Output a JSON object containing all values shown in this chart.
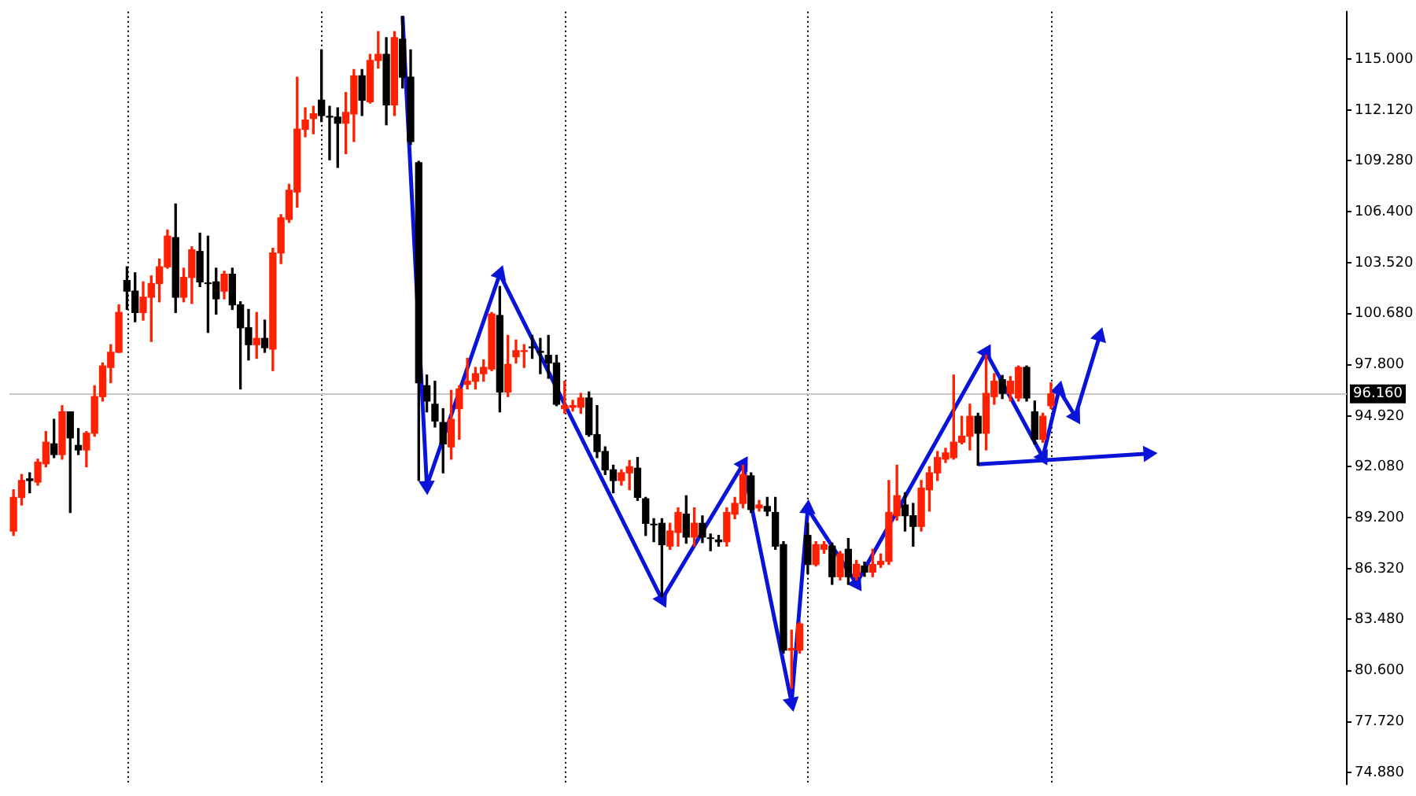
{
  "chart_data": {
    "type": "candlestick",
    "categories": [
      null,
      null,
      null,
      null,
      null,
      null,
      null,
      null,
      null,
      null,
      null,
      null,
      null,
      null,
      null,
      null,
      null,
      null,
      null,
      null,
      null,
      null,
      null,
      null,
      null,
      null,
      null,
      null,
      null,
      null,
      null,
      null,
      null,
      null,
      null,
      null,
      null,
      null,
      null,
      null,
      null,
      null,
      null,
      null,
      null,
      null,
      null,
      null,
      null,
      null,
      null,
      null,
      null,
      null,
      null,
      null,
      null,
      null,
      null,
      null,
      null,
      null,
      null,
      null,
      null,
      null,
      null,
      null,
      null,
      null,
      null,
      null,
      null,
      null,
      null,
      null,
      null,
      null,
      null,
      null,
      null,
      null,
      null,
      null,
      null,
      null,
      null,
      null,
      null,
      null,
      null,
      null,
      null,
      null,
      null,
      null,
      null,
      null,
      null,
      null,
      null,
      null,
      null,
      null,
      null,
      null,
      null,
      null,
      null,
      null,
      null,
      null,
      null,
      null,
      null,
      null,
      null,
      null,
      null,
      null,
      null,
      null,
      null,
      null,
      null,
      null,
      null,
      null,
      null,
      null,
      null,
      null,
      null,
      null,
      null,
      null,
      null,
      null,
      null,
      null,
      null,
      null,
      null,
      null,
      null,
      null,
      null,
      null,
      null,
      null,
      null,
      null,
      null,
      null,
      null,
      null,
      null,
      null,
      null,
      null,
      null,
      null,
      null,
      null,
      null
    ],
    "ohlc": [
      [
        88.45,
        90.77,
        88.2,
        90.34
      ],
      [
        90.34,
        91.63,
        89.91,
        91.29
      ],
      [
        91.38,
        91.72,
        90.6,
        91.29
      ],
      [
        91.2,
        92.49,
        91.03,
        92.32
      ],
      [
        92.23,
        94.04,
        92.06,
        93.44
      ],
      [
        93.35,
        94.73,
        92.58,
        92.75
      ],
      [
        92.75,
        95.5,
        92.49,
        95.15
      ],
      [
        95.15,
        95.15,
        89.49,
        93.69
      ],
      [
        93.26,
        94.21,
        92.75,
        93.01
      ],
      [
        93.01,
        94.04,
        92.06,
        93.95
      ],
      [
        93.95,
        96.62,
        93.78,
        96.01
      ],
      [
        96.01,
        97.9,
        95.76,
        97.73
      ],
      [
        97.65,
        98.93,
        96.79,
        98.5
      ],
      [
        98.5,
        101.17,
        98.5,
        100.74
      ],
      [
        102.54,
        103.31,
        100.91,
        101.94
      ],
      [
        101.94,
        102.97,
        100.22,
        100.74
      ],
      [
        100.74,
        102.46,
        100.31,
        101.6
      ],
      [
        101.6,
        102.8,
        99.11,
        102.37
      ],
      [
        102.37,
        103.74,
        101.34,
        103.31
      ],
      [
        103.31,
        105.38,
        103.23,
        105.03
      ],
      [
        104.95,
        106.84,
        100.74,
        101.6
      ],
      [
        101.6,
        103.23,
        101.34,
        102.71
      ],
      [
        102.71,
        104.43,
        101.25,
        104.26
      ],
      [
        104.17,
        105.2,
        102.2,
        102.46
      ],
      [
        102.4,
        105.03,
        99.62,
        102.37
      ],
      [
        102.46,
        103.23,
        100.65,
        101.51
      ],
      [
        101.94,
        103.06,
        101.51,
        102.89
      ],
      [
        102.89,
        103.23,
        100.91,
        101.17
      ],
      [
        101.17,
        101.34,
        96.44,
        99.88
      ],
      [
        99.88,
        100.91,
        98.07,
        98.93
      ],
      [
        98.93,
        100.74,
        98.16,
        99.28
      ],
      [
        99.28,
        100.31,
        98.5,
        98.76
      ],
      [
        98.68,
        104.35,
        97.47,
        104.09
      ],
      [
        104.09,
        106.24,
        103.49,
        106.06
      ],
      [
        105.98,
        107.95,
        105.81,
        107.61
      ],
      [
        107.52,
        113.97,
        106.66,
        111.05
      ],
      [
        111.05,
        112.25,
        110.62,
        111.56
      ],
      [
        111.65,
        112.33,
        110.79,
        111.91
      ],
      [
        112.68,
        115.51,
        111.48,
        111.82
      ],
      [
        111.77,
        112.33,
        109.33,
        111.73
      ],
      [
        111.73,
        112.25,
        108.9,
        111.39
      ],
      [
        111.39,
        113.11,
        109.67,
        111.99
      ],
      [
        111.91,
        114.4,
        110.36,
        114.05
      ],
      [
        114.05,
        114.4,
        111.82,
        112.68
      ],
      [
        112.59,
        115.26,
        112.51,
        114.91
      ],
      [
        114.91,
        116.54,
        114.48,
        115.26
      ],
      [
        115.26,
        116.2,
        111.3,
        112.42
      ],
      [
        112.42,
        116.54,
        111.82,
        116.2
      ],
      [
        116.11,
        117.4,
        113.37,
        113.97
      ],
      [
        113.97,
        115.51,
        110.19,
        110.36
      ],
      [
        109.16,
        109.24,
        91.29,
        96.79
      ],
      [
        96.62,
        97.22,
        95.15,
        95.76
      ],
      [
        95.58,
        96.87,
        94.3,
        94.64
      ],
      [
        94.55,
        95.33,
        91.72,
        93.35
      ],
      [
        93.18,
        96.36,
        92.49,
        94.73
      ],
      [
        95.33,
        96.62,
        93.61,
        96.44
      ],
      [
        96.7,
        98.16,
        96.44,
        96.87
      ],
      [
        96.87,
        97.65,
        96.44,
        97.3
      ],
      [
        97.3,
        98.07,
        96.87,
        97.65
      ],
      [
        97.56,
        100.74,
        97.47,
        100.65
      ],
      [
        100.57,
        102.2,
        95.15,
        96.27
      ],
      [
        96.27,
        99.45,
        96.01,
        97.82
      ],
      [
        98.25,
        99.19,
        97.9,
        98.59
      ],
      [
        98.55,
        98.93,
        97.65,
        98.59
      ],
      [
        98.8,
        99.45,
        98.16,
        98.76
      ],
      [
        98.55,
        99.28,
        97.3,
        98.5
      ],
      [
        98.33,
        99.45,
        97.04,
        97.9
      ],
      [
        97.9,
        98.33,
        95.5,
        95.58
      ],
      [
        95.33,
        96.87,
        95.07,
        95.5
      ],
      [
        95.41,
        95.8,
        95.2,
        95.5
      ],
      [
        95.41,
        96.19,
        95.07,
        95.93
      ],
      [
        95.93,
        96.27,
        93.78,
        93.87
      ],
      [
        93.87,
        95.5,
        92.58,
        92.92
      ],
      [
        92.92,
        93.18,
        91.63,
        91.89
      ],
      [
        91.89,
        92.15,
        90.6,
        91.29
      ],
      [
        91.29,
        91.89,
        91.03,
        91.72
      ],
      [
        91.72,
        92.41,
        90.77,
        92.06
      ],
      [
        91.98,
        92.58,
        90.17,
        90.34
      ],
      [
        90.26,
        90.34,
        88.2,
        88.88
      ],
      [
        88.83,
        89.14,
        87.85,
        88.8
      ],
      [
        88.88,
        89.14,
        84.76,
        87.68
      ],
      [
        87.6,
        88.88,
        87.42,
        88.45
      ],
      [
        88.37,
        89.75,
        87.6,
        89.49
      ],
      [
        89.4,
        90.43,
        87.77,
        88.11
      ],
      [
        88.11,
        89.75,
        87.6,
        88.88
      ],
      [
        88.88,
        89.3,
        87.8,
        88.11
      ],
      [
        88.06,
        88.28,
        87.34,
        88.03
      ],
      [
        87.94,
        88.2,
        87.6,
        87.85
      ],
      [
        87.85,
        89.75,
        87.6,
        89.49
      ],
      [
        89.4,
        90.34,
        89.14,
        90.0
      ],
      [
        90.0,
        92.15,
        89.75,
        91.63
      ],
      [
        91.55,
        91.72,
        89.49,
        89.66
      ],
      [
        89.75,
        90.17,
        89.57,
        89.91
      ],
      [
        89.83,
        90.34,
        89.31,
        89.57
      ],
      [
        89.49,
        90.34,
        87.42,
        87.6
      ],
      [
        87.68,
        87.85,
        81.58,
        81.75
      ],
      [
        81.75,
        82.87,
        79.61,
        81.84
      ],
      [
        81.75,
        83.3,
        81.58,
        83.21
      ],
      [
        88.2,
        88.88,
        86.05,
        86.57
      ],
      [
        86.57,
        87.85,
        86.48,
        87.68
      ],
      [
        87.42,
        87.85,
        87.2,
        87.68
      ],
      [
        87.6,
        87.77,
        85.45,
        85.88
      ],
      [
        85.88,
        87.3,
        85.7,
        87.16
      ],
      [
        87.42,
        88.03,
        85.45,
        85.88
      ],
      [
        85.88,
        86.8,
        85.7,
        86.57
      ],
      [
        86.48,
        86.7,
        85.9,
        86.14
      ],
      [
        86.14,
        87.42,
        85.88,
        86.57
      ],
      [
        86.57,
        87.16,
        86.4,
        86.74
      ],
      [
        86.74,
        91.29,
        86.57,
        89.49
      ],
      [
        89.31,
        92.15,
        89.06,
        90.43
      ],
      [
        89.91,
        90.6,
        88.45,
        89.31
      ],
      [
        89.31,
        90.0,
        87.6,
        88.71
      ],
      [
        88.71,
        91.29,
        88.45,
        90.86
      ],
      [
        90.77,
        92.06,
        89.57,
        91.72
      ],
      [
        91.72,
        92.92,
        91.29,
        92.58
      ],
      [
        92.49,
        93.1,
        92.3,
        92.84
      ],
      [
        92.58,
        97.22,
        92.49,
        93.44
      ],
      [
        93.44,
        94.9,
        93.35,
        93.78
      ],
      [
        93.78,
        95.58,
        93.01,
        94.9
      ],
      [
        94.9,
        95.07,
        92.15,
        93.95
      ],
      [
        93.95,
        98.33,
        93.01,
        96.19
      ],
      [
        96.01,
        97.3,
        95.58,
        96.87
      ],
      [
        96.96,
        97.2,
        95.9,
        96.19
      ],
      [
        96.19,
        97.13,
        95.76,
        96.87
      ],
      [
        95.93,
        97.73,
        95.76,
        97.65
      ],
      [
        97.65,
        97.73,
        95.76,
        95.93
      ],
      [
        95.15,
        95.76,
        93.35,
        93.61
      ],
      [
        93.61,
        95.07,
        93.44,
        94.9
      ],
      [
        95.5,
        96.79,
        95.33,
        96.16
      ],
      null,
      null,
      null,
      null,
      null,
      null,
      null,
      null,
      null,
      null,
      null,
      null,
      null,
      null,
      null,
      null,
      null,
      null,
      null,
      null,
      null,
      null,
      null,
      null,
      null,
      null,
      null,
      null,
      null,
      null,
      null,
      null,
      null,
      null,
      null,
      null
    ],
    "series": [
      {
        "type": "line",
        "color": "#0a14d8",
        "values": [
          null,
          null,
          null,
          null,
          null,
          null,
          null,
          null,
          null,
          null,
          null,
          null,
          null,
          null,
          null,
          null,
          null,
          null,
          null,
          null,
          null,
          null,
          null,
          null,
          null,
          null,
          null,
          null,
          null,
          null,
          null,
          null,
          null,
          null,
          null,
          null,
          null,
          null,
          null,
          null,
          null,
          null,
          null,
          null,
          null,
          null,
          null,
          null,
          117.4,
          null,
          null,
          91.0,
          null,
          null,
          null,
          null,
          null,
          null,
          null,
          null,
          102.9,
          null,
          null,
          null,
          null,
          null,
          null,
          null,
          null,
          null,
          null,
          null,
          null,
          null,
          null,
          null,
          null,
          null,
          null,
          null,
          84.6,
          null,
          null,
          null,
          null,
          null,
          null,
          null,
          null,
          null,
          92.2,
          null,
          null,
          null,
          null,
          null,
          78.8,
          null,
          89.7,
          null,
          null,
          null,
          null,
          null,
          85.5,
          null,
          null,
          null,
          null,
          null,
          null,
          null,
          null,
          null,
          null,
          null,
          null,
          null,
          null,
          null,
          98.5,
          null,
          null,
          null,
          null,
          null,
          null,
          92.6,
          null,
          96.4,
          null,
          94.9,
          null,
          null,
          99.4,
          null,
          null,
          null,
          null,
          null,
          null,
          null,
          null,
          null,
          null,
          null,
          null,
          null,
          null,
          null,
          null,
          null,
          null,
          null,
          null,
          null,
          null,
          null,
          null,
          null,
          null,
          null,
          null,
          null,
          null
        ]
      },
      {
        "type": "line",
        "color": "#0a14d8",
        "values": [
          null,
          null,
          null,
          null,
          null,
          null,
          null,
          null,
          null,
          null,
          null,
          null,
          null,
          null,
          null,
          null,
          null,
          null,
          null,
          null,
          null,
          null,
          null,
          null,
          null,
          null,
          null,
          null,
          null,
          null,
          null,
          null,
          null,
          null,
          null,
          null,
          null,
          null,
          null,
          null,
          null,
          null,
          null,
          null,
          null,
          null,
          null,
          null,
          null,
          null,
          null,
          null,
          null,
          null,
          null,
          null,
          null,
          null,
          null,
          null,
          null,
          null,
          null,
          null,
          null,
          null,
          null,
          null,
          null,
          null,
          null,
          null,
          null,
          null,
          null,
          null,
          null,
          null,
          null,
          null,
          null,
          null,
          null,
          null,
          null,
          null,
          null,
          null,
          null,
          null,
          null,
          null,
          null,
          null,
          null,
          null,
          null,
          null,
          null,
          null,
          null,
          null,
          null,
          null,
          null,
          null,
          null,
          null,
          null,
          null,
          null,
          null,
          null,
          null,
          null,
          null,
          null,
          null,
          null,
          92.2,
          null,
          null,
          null,
          null,
          null,
          null,
          null,
          null,
          null,
          null,
          null,
          null,
          null,
          null,
          null,
          null,
          null,
          null,
          null,
          null,
          92.8,
          null,
          null,
          null,
          null,
          null,
          null,
          null,
          null,
          null,
          null,
          null,
          null,
          null,
          null,
          null,
          null,
          null,
          null,
          null,
          null,
          null,
          null,
          null,
          null
        ]
      }
    ],
    "marker": "triangle",
    "colors": [
      "#ff2000",
      "#ff2000",
      "#000000",
      "#ff2000",
      "#ff2000",
      "#000000",
      "#ff2000",
      "#000000",
      "#000000",
      "#ff2000",
      "#ff2000",
      "#ff2000",
      "#ff2000",
      "#ff2000",
      "#000000",
      "#000000",
      "#ff2000",
      "#ff2000",
      "#ff2000",
      "#ff2000",
      "#000000",
      "#ff2000",
      "#ff2000",
      "#000000",
      "#000000",
      "#000000",
      "#ff2000",
      "#000000",
      "#000000",
      "#000000",
      "#ff2000",
      "#000000",
      "#ff2000",
      "#ff2000",
      "#ff2000",
      "#ff2000",
      "#ff2000",
      "#ff2000",
      "#000000",
      "#000000",
      "#000000",
      "#ff2000",
      "#ff2000",
      "#000000",
      "#ff2000",
      "#ff2000",
      "#000000",
      "#ff2000",
      "#000000",
      "#000000",
      "#000000",
      "#000000",
      "#000000",
      "#000000",
      "#ff2000",
      "#ff2000",
      "#ff2000",
      "#ff2000",
      "#ff2000",
      "#ff2000",
      "#000000",
      "#ff2000",
      "#ff2000",
      "#ff2000",
      "#000000",
      "#000000",
      "#000000",
      "#000000",
      "#ff2000",
      "#ff2000",
      "#ff2000",
      "#000000",
      "#000000",
      "#000000",
      "#000000",
      "#ff2000",
      "#ff2000",
      "#000000",
      "#000000",
      "#000000",
      "#000000",
      "#ff2000",
      "#ff2000",
      "#000000",
      "#ff2000",
      "#000000",
      "#000000",
      "#000000",
      "#ff2000",
      "#ff2000",
      "#ff2000",
      "#000000",
      "#ff2000",
      "#000000",
      "#000000",
      "#000000",
      "#ff2000",
      "#ff2000",
      "#000000",
      "#ff2000",
      "#ff2000",
      "#000000",
      "#ff2000",
      "#000000",
      "#ff2000",
      "#000000",
      "#ff2000",
      "#ff2000",
      "#ff2000",
      "#ff2000",
      "#000000",
      "#000000",
      "#ff2000",
      "#ff2000",
      "#ff2000",
      "#ff2000",
      "#ff2000",
      "#ff2000",
      "#ff2000",
      "#000000",
      "#ff2000",
      "#ff2000",
      "#000000",
      "#ff2000",
      "#ff2000",
      "#000000",
      "#000000",
      "#ff2000",
      "#ff2000",
      null,
      null,
      null,
      null,
      null,
      null,
      null,
      null,
      null,
      null,
      null,
      null,
      null,
      null,
      null,
      null,
      null,
      null,
      null,
      null,
      null,
      null,
      null,
      null,
      null,
      null,
      null,
      null,
      null,
      null,
      null,
      null,
      null,
      null,
      null,
      null
    ],
    "ylim": [
      74.2,
      117.66
    ],
    "yticks": [
      {
        "value": 74.88,
        "label": "74.880"
      },
      {
        "value": 77.72,
        "label": "77.720"
      },
      {
        "value": 80.6,
        "label": "80.600"
      },
      {
        "value": 83.48,
        "label": "83.480"
      },
      {
        "value": 86.32,
        "label": "86.320"
      },
      {
        "value": 89.2,
        "label": "89.200"
      },
      {
        "value": 92.08,
        "label": "92.080"
      },
      {
        "value": 94.92,
        "label": "94.920"
      },
      {
        "value": 97.8,
        "label": "97.800"
      },
      {
        "value": 100.68,
        "label": "100.680"
      },
      {
        "value": 103.52,
        "label": "103.520"
      },
      {
        "value": 106.4,
        "label": "106.400"
      },
      {
        "value": 109.28,
        "label": "109.280"
      },
      {
        "value": 112.12,
        "label": "112.120"
      },
      {
        "value": 115.0,
        "label": "115.000"
      }
    ],
    "ref_lines": [
      {
        "axis": "y",
        "value": 96.16,
        "label": "96.160",
        "color": "#c8c8c8"
      }
    ],
    "tick_labels": "y",
    "grid": false,
    "legend": false
  }
}
